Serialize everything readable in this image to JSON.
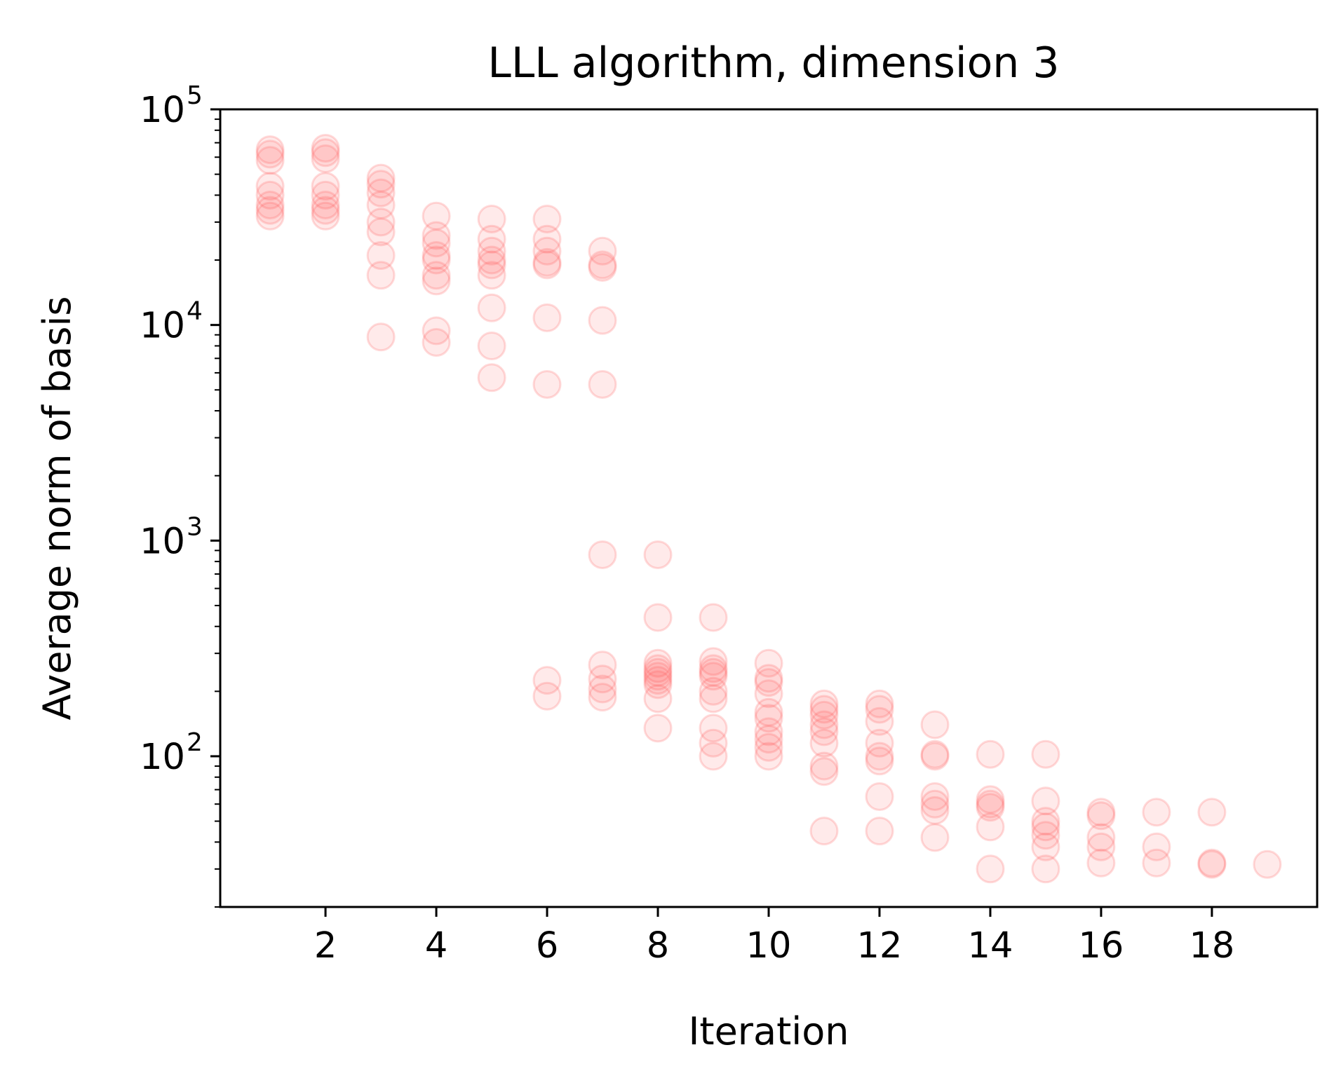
{
  "chart_data": {
    "type": "scatter",
    "title": "LLL algorithm, dimension 3",
    "xlabel": "Iteration",
    "ylabel": "Average norm of basis",
    "xlim": [
      0.1,
      19.9
    ],
    "ylim": [
      20,
      100000
    ],
    "yscale": "log",
    "grid": false,
    "legend": "none",
    "marker_color": "#ff5a5a",
    "x_ticks": [
      2,
      4,
      6,
      8,
      10,
      12,
      14,
      16,
      18
    ],
    "x_tick_labels": [
      "2",
      "4",
      "6",
      "8",
      "10",
      "12",
      "14",
      "16",
      "18"
    ],
    "y_ticks": [
      100,
      1000,
      10000,
      100000
    ],
    "y_tick_labels": [
      {
        "base": "10",
        "exp": "2"
      },
      {
        "base": "10",
        "exp": "3"
      },
      {
        "base": "10",
        "exp": "4"
      },
      {
        "base": "10",
        "exp": "5"
      }
    ],
    "series": [
      {
        "points": [
          [
            1,
            65000
          ],
          [
            1,
            62000
          ],
          [
            1,
            58000
          ],
          [
            1,
            44000
          ],
          [
            1,
            40000
          ],
          [
            1,
            36000
          ],
          [
            1,
            34000
          ],
          [
            1,
            32000
          ],
          [
            2,
            66000
          ],
          [
            2,
            63000
          ],
          [
            2,
            59000
          ],
          [
            2,
            44000
          ],
          [
            2,
            40000
          ],
          [
            2,
            36000
          ],
          [
            2,
            34000
          ],
          [
            2,
            32000
          ],
          [
            3,
            48000
          ],
          [
            3,
            45000
          ],
          [
            3,
            41000
          ],
          [
            3,
            36000
          ],
          [
            3,
            30000
          ],
          [
            3,
            27000
          ],
          [
            3,
            21000
          ],
          [
            3,
            17000
          ],
          [
            3,
            8800
          ],
          [
            4,
            32000
          ],
          [
            4,
            26000
          ],
          [
            4,
            24000
          ],
          [
            4,
            21000
          ],
          [
            4,
            20000
          ],
          [
            4,
            17000
          ],
          [
            4,
            16000
          ],
          [
            4,
            9400
          ],
          [
            4,
            8300
          ],
          [
            5,
            31000
          ],
          [
            5,
            25000
          ],
          [
            5,
            22000
          ],
          [
            5,
            20000
          ],
          [
            5,
            19000
          ],
          [
            5,
            17000
          ],
          [
            5,
            12000
          ],
          [
            5,
            8000
          ],
          [
            5,
            5700
          ],
          [
            6,
            31000
          ],
          [
            6,
            25000
          ],
          [
            6,
            22000
          ],
          [
            6,
            19500
          ],
          [
            6,
            19000
          ],
          [
            6,
            10800
          ],
          [
            6,
            5300
          ],
          [
            6,
            225
          ],
          [
            6,
            190
          ],
          [
            7,
            22000
          ],
          [
            7,
            19000
          ],
          [
            7,
            18500
          ],
          [
            7,
            10500
          ],
          [
            7,
            5300
          ],
          [
            7,
            860
          ],
          [
            7,
            265
          ],
          [
            7,
            228
          ],
          [
            7,
            205
          ],
          [
            7,
            188
          ],
          [
            8,
            860
          ],
          [
            8,
            440
          ],
          [
            8,
            270
          ],
          [
            8,
            255
          ],
          [
            8,
            245
          ],
          [
            8,
            235
          ],
          [
            8,
            225
          ],
          [
            8,
            215
          ],
          [
            8,
            185
          ],
          [
            8,
            135
          ],
          [
            9,
            440
          ],
          [
            9,
            275
          ],
          [
            9,
            255
          ],
          [
            9,
            245
          ],
          [
            9,
            235
          ],
          [
            9,
            200
          ],
          [
            9,
            185
          ],
          [
            9,
            135
          ],
          [
            9,
            115
          ],
          [
            9,
            100
          ],
          [
            10,
            270
          ],
          [
            10,
            230
          ],
          [
            10,
            220
          ],
          [
            10,
            195
          ],
          [
            10,
            160
          ],
          [
            10,
            150
          ],
          [
            10,
            130
          ],
          [
            10,
            120
          ],
          [
            10,
            110
          ],
          [
            10,
            100
          ],
          [
            11,
            175
          ],
          [
            11,
            165
          ],
          [
            11,
            155
          ],
          [
            11,
            140
          ],
          [
            11,
            130
          ],
          [
            11,
            115
          ],
          [
            11,
            90
          ],
          [
            11,
            85
          ],
          [
            11,
            45
          ],
          [
            12,
            175
          ],
          [
            12,
            165
          ],
          [
            12,
            145
          ],
          [
            12,
            115
          ],
          [
            12,
            100
          ],
          [
            12,
            95
          ],
          [
            12,
            65
          ],
          [
            12,
            45
          ],
          [
            13,
            140
          ],
          [
            13,
            102
          ],
          [
            13,
            100
          ],
          [
            13,
            65
          ],
          [
            13,
            60
          ],
          [
            13,
            56
          ],
          [
            13,
            42
          ],
          [
            14,
            102
          ],
          [
            14,
            63
          ],
          [
            14,
            60
          ],
          [
            14,
            58
          ],
          [
            14,
            47
          ],
          [
            14,
            30
          ],
          [
            15,
            102
          ],
          [
            15,
            62
          ],
          [
            15,
            50
          ],
          [
            15,
            47
          ],
          [
            15,
            43
          ],
          [
            15,
            38
          ],
          [
            15,
            30
          ],
          [
            16,
            55
          ],
          [
            16,
            53
          ],
          [
            16,
            42
          ],
          [
            16,
            38
          ],
          [
            16,
            32
          ],
          [
            17,
            55
          ],
          [
            17,
            38
          ],
          [
            17,
            32
          ],
          [
            18,
            55
          ],
          [
            18,
            32
          ],
          [
            18,
            31.5
          ],
          [
            19,
            31.5
          ]
        ]
      }
    ]
  }
}
